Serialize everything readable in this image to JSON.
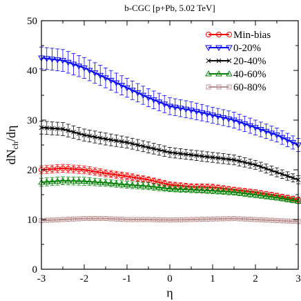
{
  "chart_data": {
    "type": "line",
    "title": "b-CGC [p+Pb, 5.02 TeV]",
    "xlabel": "η",
    "ylabel_main": "dN",
    "ylabel_sub": "ch",
    "ylabel_tail": "/dη",
    "xlim": [
      -3,
      3
    ],
    "ylim": [
      0,
      50
    ],
    "xticks": [
      -3,
      -2,
      -1,
      0,
      1,
      2,
      3
    ],
    "yticks": [
      0,
      10,
      20,
      30,
      40,
      50
    ],
    "grid": false,
    "legend_position": "top-right",
    "x": [
      -3,
      -2.5,
      -2,
      -1.5,
      -1,
      -0.5,
      0,
      0.5,
      1,
      1.5,
      2,
      2.5,
      3
    ],
    "series": [
      {
        "name": "Min-bias",
        "color": "#ff0000",
        "marker": "circle",
        "values": [
          20.0,
          20.3,
          20.0,
          19.3,
          18.7,
          18.0,
          17.0,
          16.6,
          16.5,
          16.0,
          15.5,
          14.8,
          14.0
        ],
        "errors": [
          0.8,
          0.8,
          0.8,
          0.7,
          0.7,
          0.6,
          0.6,
          0.6,
          0.6,
          0.5,
          0.5,
          0.5,
          0.5
        ]
      },
      {
        "name": "0-20%",
        "color": "#0000ff",
        "marker": "triangle-down",
        "values": [
          42.5,
          42.0,
          40.5,
          38.5,
          36.5,
          34.5,
          32.8,
          32.0,
          31.0,
          30.0,
          28.5,
          27.0,
          25.0
        ],
        "errors": [
          2.2,
          2.2,
          2.1,
          2.0,
          1.9,
          1.8,
          1.7,
          1.7,
          1.6,
          1.6,
          1.5,
          1.4,
          1.3
        ]
      },
      {
        "name": "20-40%",
        "color": "#000000",
        "marker": "x",
        "values": [
          28.5,
          28.2,
          27.0,
          26.2,
          25.5,
          24.5,
          23.5,
          23.0,
          22.5,
          22.0,
          21.0,
          19.5,
          18.0
        ],
        "errors": [
          1.3,
          1.3,
          1.2,
          1.2,
          1.1,
          1.1,
          1.0,
          1.0,
          1.0,
          1.0,
          0.9,
          0.9,
          0.8
        ]
      },
      {
        "name": "40-60%",
        "color": "#008000",
        "marker": "triangle-up",
        "values": [
          17.5,
          17.8,
          17.7,
          17.4,
          17.0,
          16.7,
          16.2,
          16.0,
          15.8,
          15.5,
          15.0,
          14.4,
          13.7
        ],
        "errors": [
          0.8,
          0.8,
          0.8,
          0.7,
          0.7,
          0.7,
          0.6,
          0.6,
          0.6,
          0.6,
          0.6,
          0.5,
          0.5
        ]
      },
      {
        "name": "60-80%",
        "color": "#bc8f8f",
        "marker": "square",
        "values": [
          9.8,
          10.0,
          10.2,
          10.2,
          10.0,
          10.0,
          9.9,
          10.0,
          10.1,
          10.2,
          10.0,
          9.8,
          9.6
        ],
        "errors": [
          0.4,
          0.4,
          0.4,
          0.4,
          0.4,
          0.4,
          0.4,
          0.4,
          0.4,
          0.4,
          0.4,
          0.4,
          0.4
        ]
      }
    ]
  }
}
